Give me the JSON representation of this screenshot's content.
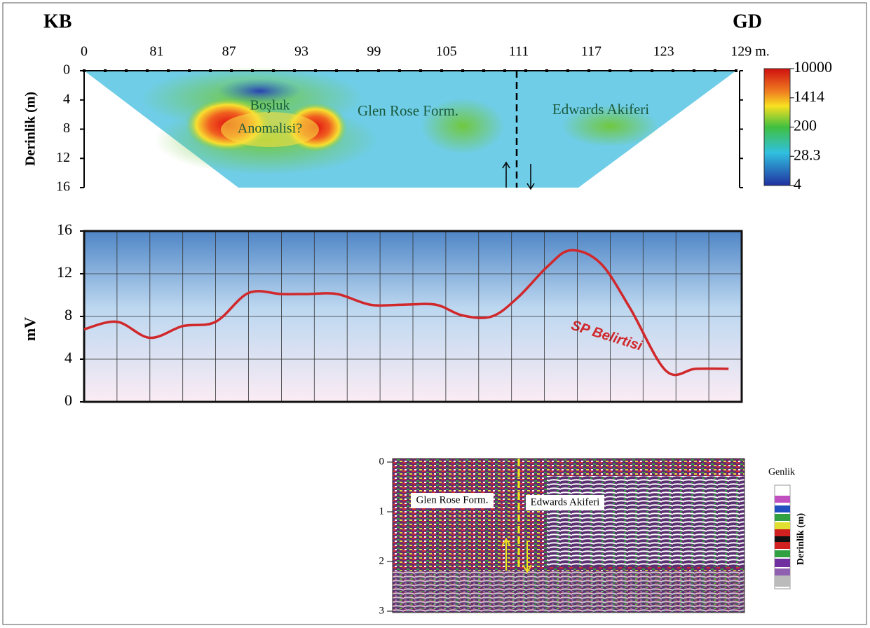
{
  "chart_data": [
    {
      "type": "section",
      "left_label": "KB",
      "right_label": "GD",
      "categories": [
        "0",
        "81",
        "87",
        "93",
        "99",
        "105",
        "111",
        "117",
        "123",
        "129 m."
      ],
      "ylabel": "Derinlik (m)",
      "ylim": [
        0,
        16
      ],
      "yticks": [
        0,
        4,
        8,
        12,
        16
      ],
      "colorbar": {
        "log": true,
        "ticks": [
          10000,
          1414,
          200,
          28.3,
          4
        ],
        "lim": [
          4,
          10000
        ]
      },
      "annotations": [
        "Boşluk",
        "Anomalisi?",
        "Glen Rose Form.",
        "Edwards Akiferi"
      ]
    },
    {
      "type": "line",
      "ylabel": "mV",
      "ylim": [
        0,
        16
      ],
      "yticks": [
        0,
        4,
        8,
        12,
        16
      ],
      "xlim": [
        0,
        20
      ],
      "xgrid": [
        0,
        1,
        2,
        3,
        4,
        5,
        6,
        7,
        8,
        9,
        10,
        11,
        12,
        13,
        14,
        15,
        16,
        17,
        18,
        19,
        20
      ],
      "x": [
        0,
        1,
        2,
        3,
        4,
        5,
        6,
        6.8,
        7.7,
        8.7,
        9.7,
        10.7,
        11.5,
        12.4,
        13.2,
        14.1,
        14.8,
        15.7,
        16.6,
        17.7,
        18.6,
        19.6
      ],
      "series": [
        {
          "name": "SP Belirtisi",
          "color": "#d0282b",
          "values": [
            6.8,
            7.5,
            6.0,
            7.1,
            7.5,
            10.2,
            10.1,
            10.1,
            10.1,
            9.1,
            9.1,
            9.1,
            8.1,
            8.0,
            9.8,
            12.7,
            14.2,
            13.0,
            8.8,
            2.9,
            3.1,
            3.1
          ]
        }
      ],
      "grid": true
    },
    {
      "type": "radargram",
      "ylim": [
        0,
        3
      ],
      "yticks": [
        0,
        1,
        2,
        3
      ],
      "annotations": [
        "Glen Rose Form.",
        "Edwards Akiferi"
      ],
      "legend_title": "Genlik",
      "ylabel": "Derinlik (m)"
    }
  ]
}
